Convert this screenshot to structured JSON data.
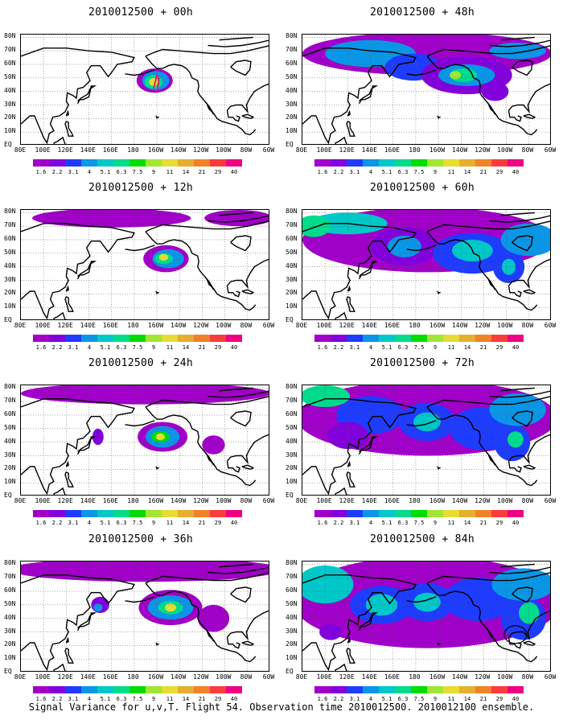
{
  "panels": [
    {
      "title": "2010012500 + 00h",
      "lead": 0
    },
    {
      "title": "2010012500 + 12h",
      "lead": 12
    },
    {
      "title": "2010012500 + 24h",
      "lead": 24
    },
    {
      "title": "2010012500 + 36h",
      "lead": 36
    },
    {
      "title": "2010012500 + 48h",
      "lead": 48
    },
    {
      "title": "2010012500 + 60h",
      "lead": 60
    },
    {
      "title": "2010012500 + 72h",
      "lead": 72
    },
    {
      "title": "2010012500 + 84h",
      "lead": 84
    }
  ],
  "lat_labels": [
    "80N",
    "70N",
    "60N",
    "50N",
    "40N",
    "30N",
    "20N",
    "10N",
    "EQ"
  ],
  "lon_labels": [
    "80E",
    "100E",
    "120E",
    "140E",
    "160E",
    "180",
    "160W",
    "140W",
    "120W",
    "100W",
    "80W",
    "60W"
  ],
  "colorbar": {
    "levels": [
      "1.6",
      "2.2",
      "3.1",
      "4",
      "5.1",
      "6.3",
      "7.5",
      "9",
      "11",
      "14",
      "21",
      "29",
      "40"
    ],
    "colors": [
      "#a000c8",
      "#8200dc",
      "#1e3cff",
      "#0a96e6",
      "#00c8c8",
      "#00dc8c",
      "#00dc00",
      "#a0e632",
      "#e6dc32",
      "#e6af2d",
      "#f08228",
      "#fa3c3c",
      "#f00082"
    ]
  },
  "caption": "Signal Variance for u,v,T. Flight 54. Observation time 2010012500. 2010012100 ensemble."
}
